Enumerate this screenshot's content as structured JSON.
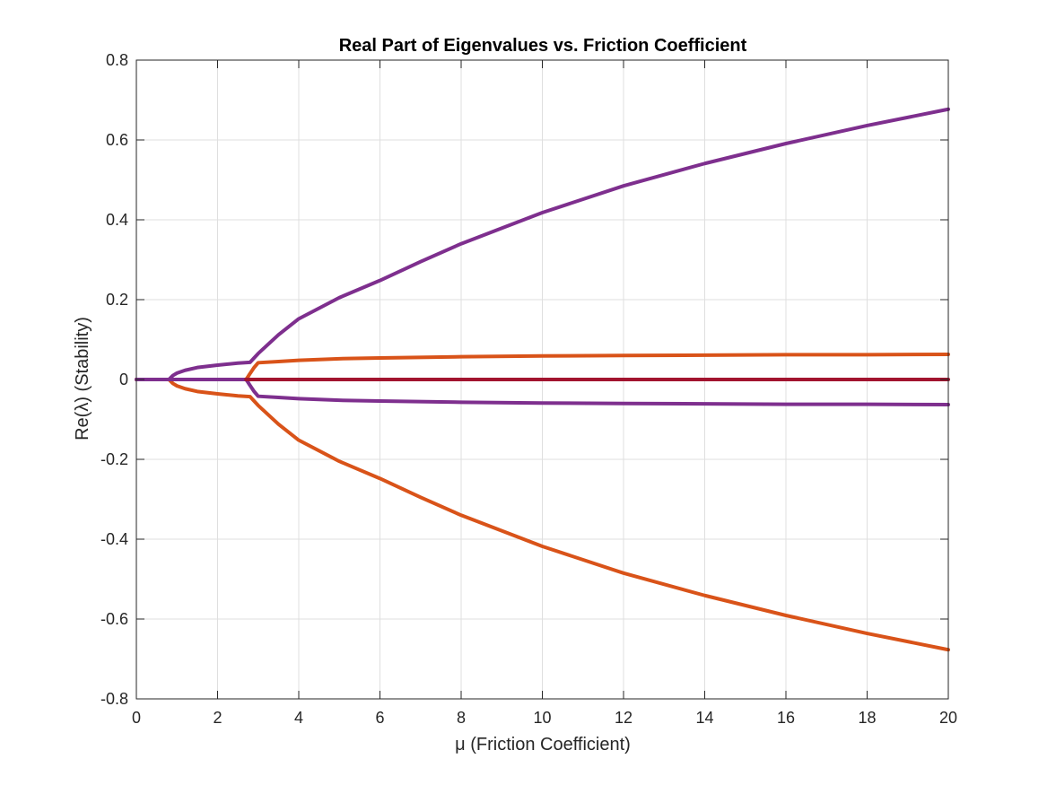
{
  "chart_data": {
    "type": "line",
    "title": "Real Part of Eigenvalues vs. Friction Coefficient",
    "xlabel": "μ (Friction Coefficient)",
    "ylabel": "Re(λ) (Stability)",
    "xlim": [
      0,
      20
    ],
    "ylim": [
      -0.8,
      0.8
    ],
    "xticks": [
      0,
      2,
      4,
      6,
      8,
      10,
      12,
      14,
      16,
      18,
      20
    ],
    "yticks": [
      -0.8,
      -0.6,
      -0.4,
      -0.2,
      0,
      0.2,
      0.4,
      0.6,
      0.8
    ],
    "xtick_labels": [
      "0",
      "2",
      "4",
      "6",
      "8",
      "10",
      "12",
      "14",
      "16",
      "18",
      "20"
    ],
    "ytick_labels": [
      "-0.8",
      "-0.6",
      "-0.4",
      "-0.2",
      "0",
      "0.2",
      "0.4",
      "0.6",
      "0.8"
    ],
    "grid": true,
    "legend": "none",
    "colors": {
      "purple": "#7e2f8e",
      "orange": "#d95319",
      "red": "#a2142f",
      "grid": "#dfdfdf",
      "axis": "#262626"
    },
    "series": [
      {
        "color": "#7e2f8e",
        "x": [
          0,
          0.8,
          0.9,
          1.0,
          1.2,
          1.5,
          2.0,
          2.5,
          2.8,
          3.0,
          3.5,
          4,
          5,
          6,
          7,
          8,
          10,
          12,
          14,
          16,
          18,
          20
        ],
        "y": [
          0,
          0,
          0.01,
          0.016,
          0.023,
          0.03,
          0.036,
          0.041,
          0.043,
          0.065,
          0.112,
          0.152,
          0.205,
          0.248,
          0.295,
          0.34,
          0.418,
          0.485,
          0.541,
          0.591,
          0.636,
          0.677
        ]
      },
      {
        "color": "#d95319",
        "x": [
          0,
          0.8,
          0.9,
          1.0,
          1.2,
          1.5,
          2.0,
          2.5,
          2.8,
          3.0,
          3.5,
          4,
          5,
          6,
          7,
          8,
          10,
          12,
          14,
          16,
          18,
          20
        ],
        "y": [
          0,
          0,
          -0.01,
          -0.016,
          -0.023,
          -0.03,
          -0.036,
          -0.041,
          -0.043,
          -0.065,
          -0.112,
          -0.152,
          -0.205,
          -0.248,
          -0.295,
          -0.34,
          -0.418,
          -0.485,
          -0.541,
          -0.591,
          -0.636,
          -0.677
        ]
      },
      {
        "color": "#d95319",
        "x": [
          0,
          2.7,
          2.75,
          2.8,
          2.9,
          3.0,
          3.5,
          4,
          5,
          6,
          8,
          10,
          12,
          14,
          16,
          18,
          20
        ],
        "y": [
          0,
          0,
          0.007,
          0.015,
          0.03,
          0.042,
          0.045,
          0.048,
          0.052,
          0.054,
          0.057,
          0.059,
          0.06,
          0.061,
          0.062,
          0.062,
          0.063
        ]
      },
      {
        "color": "#7e2f8e",
        "x": [
          0,
          2.7,
          2.75,
          2.8,
          2.9,
          3.0,
          3.5,
          4,
          5,
          6,
          8,
          10,
          12,
          14,
          16,
          18,
          20
        ],
        "y": [
          0,
          0,
          -0.007,
          -0.015,
          -0.03,
          -0.042,
          -0.045,
          -0.048,
          -0.052,
          -0.054,
          -0.057,
          -0.059,
          -0.06,
          -0.061,
          -0.062,
          -0.062,
          -0.063
        ]
      },
      {
        "color": "#a2142f",
        "x": [
          2.7,
          20
        ],
        "y": [
          0,
          0
        ]
      }
    ]
  }
}
